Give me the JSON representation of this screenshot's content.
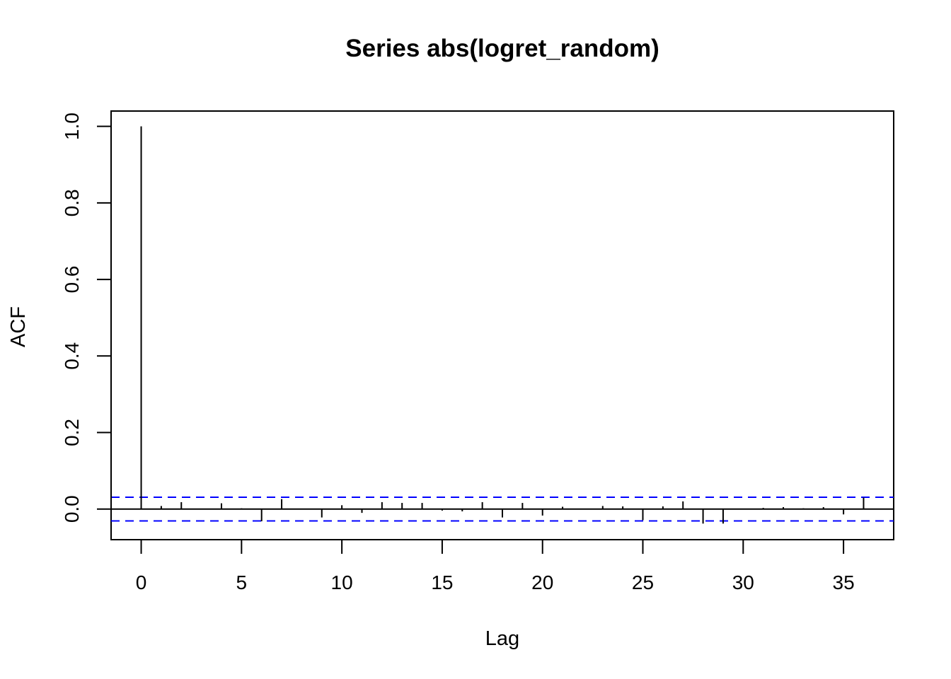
{
  "chart_data": {
    "type": "bar",
    "title": "Series  abs(logret_random)",
    "xlabel": "Lag",
    "ylabel": "ACF",
    "xlim": [
      -1.5,
      37.5
    ],
    "ylim": [
      -0.08,
      1.04
    ],
    "x_ticks": [
      0,
      5,
      10,
      15,
      20,
      25,
      30,
      35
    ],
    "y_ticks": [
      "0.0",
      "0.2",
      "0.4",
      "0.6",
      "0.8",
      "1.0"
    ],
    "lags": [
      0,
      1,
      2,
      3,
      4,
      5,
      6,
      7,
      8,
      9,
      10,
      11,
      12,
      13,
      14,
      15,
      16,
      17,
      18,
      19,
      20,
      21,
      22,
      23,
      24,
      25,
      26,
      27,
      28,
      29,
      30,
      31,
      32,
      33,
      34,
      35,
      36
    ],
    "acf": [
      1.0,
      0.008,
      0.018,
      0.0,
      0.015,
      0.002,
      -0.032,
      0.026,
      0.0,
      -0.022,
      0.01,
      -0.01,
      0.018,
      0.016,
      0.016,
      -0.004,
      -0.006,
      0.018,
      -0.022,
      0.016,
      -0.017,
      0.006,
      0.0,
      0.008,
      0.007,
      -0.029,
      0.007,
      0.02,
      -0.038,
      -0.038,
      0.0,
      0.003,
      0.005,
      0.002,
      0.005,
      -0.014,
      0.03
    ],
    "confidence_bound": 0.031,
    "colors": {
      "bars": "#000000",
      "confidence": "#0000ff",
      "zero_line": "#000000"
    }
  }
}
